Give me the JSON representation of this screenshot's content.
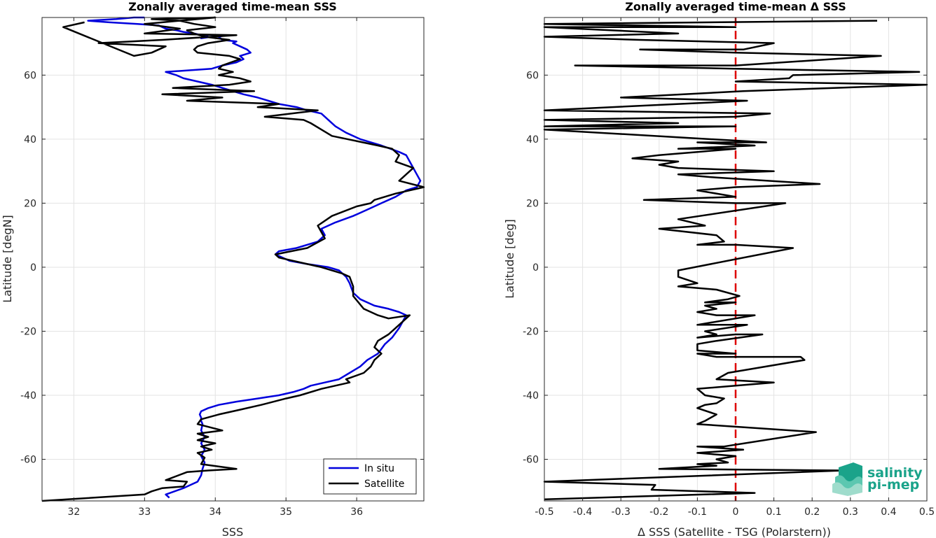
{
  "chart_data": [
    {
      "type": "line",
      "title": "Zonally averaged time-mean SSS",
      "xlabel": "SSS",
      "ylabel": "Latitude [degN]",
      "xlim": [
        31.55,
        36.95
      ],
      "ylim": [
        -73,
        78
      ],
      "xticks": [
        32,
        33,
        34,
        35,
        36
      ],
      "yticks": [
        -60,
        -40,
        -20,
        0,
        20,
        40,
        60
      ],
      "grid": true,
      "legend_position": "bottom-right",
      "series": [
        {
          "name": "In situ",
          "color": "#0000dd",
          "x": [
            33.35,
            33.3,
            33.55,
            33.75,
            33.8,
            33.82,
            33.85,
            33.8,
            33.85,
            33.8,
            33.85,
            33.8,
            33.82,
            33.8,
            33.8,
            33.78,
            33.8,
            33.9,
            34.05,
            34.3,
            34.6,
            34.9,
            35.1,
            35.25,
            35.35,
            35.55,
            35.75,
            35.9,
            36.05,
            36.15,
            36.3,
            36.4,
            36.5,
            36.6,
            36.7,
            36.6,
            36.45,
            36.25,
            36.05,
            35.95,
            35.9,
            35.85,
            35.75,
            35.6,
            35.3,
            35.05,
            34.85,
            34.9,
            35.15,
            35.45,
            35.55,
            35.5,
            35.7,
            35.95,
            36.15,
            36.35,
            36.55,
            36.7,
            36.85,
            36.9,
            36.85,
            36.8,
            36.75,
            36.7,
            36.6,
            36.35,
            36.05,
            35.85,
            35.7,
            35.6,
            35.5,
            35.3,
            35.15,
            34.9,
            34.75,
            34.6,
            34.4,
            34.25,
            34.1,
            33.95,
            33.75,
            33.55,
            33.45,
            33.3,
            33.95,
            34.1,
            34.3,
            34.4,
            34.35,
            34.5,
            34.45,
            34.35,
            34.25,
            34.3,
            34.1,
            34.05,
            34.15,
            33.95,
            33.8,
            33.9,
            33.7,
            33.55,
            33.45,
            33.3,
            33.25,
            33.2,
            32.9,
            32.5,
            32.2,
            32.6,
            32.85,
            33.0
          ],
          "y": [
            -72,
            -71,
            -69,
            -67,
            -65,
            -63,
            -61,
            -59,
            -57,
            -55,
            -53,
            -51,
            -49,
            -48,
            -47,
            -46,
            -45,
            -44,
            -43,
            -42,
            -41,
            -40,
            -39,
            -38,
            -37,
            -36,
            -35,
            -33,
            -31,
            -29,
            -27,
            -24,
            -22,
            -19,
            -15,
            -14,
            -13,
            -12,
            -10,
            -8,
            -5,
            -3,
            -1,
            0,
            1,
            2,
            4,
            5,
            6,
            8,
            10,
            12,
            14,
            16,
            18,
            20,
            22,
            24,
            25,
            27,
            29,
            31,
            33,
            35,
            36,
            38,
            40,
            42,
            44,
            46,
            48,
            49,
            50,
            51,
            52,
            53,
            54,
            55,
            56,
            57,
            58,
            59,
            60,
            61,
            62,
            63,
            64,
            65,
            66,
            67,
            68,
            69,
            70,
            70.5,
            71,
            72,
            72.5,
            72,
            71.5,
            72,
            73,
            73.5,
            74,
            74.5,
            75,
            75.5,
            76,
            76.5,
            77,
            77.5,
            78,
            78
          ]
        },
        {
          "name": "Satellite",
          "color": "#000000",
          "x": [
            31.55,
            33.0,
            33.1,
            33.25,
            33.55,
            33.6,
            33.3,
            33.6,
            33.9,
            34.3,
            33.8,
            33.85,
            33.75,
            33.95,
            33.8,
            34.0,
            33.75,
            33.9,
            33.75,
            34.1,
            33.75,
            33.8,
            34.05,
            34.35,
            34.65,
            35.0,
            35.2,
            35.5,
            35.9,
            35.85,
            36.1,
            36.2,
            36.25,
            36.35,
            36.25,
            36.3,
            36.45,
            36.55,
            36.75,
            36.45,
            36.3,
            36.1,
            35.95,
            35.95,
            35.9,
            35.8,
            35.5,
            35.3,
            34.9,
            34.85,
            35.3,
            35.55,
            35.45,
            35.65,
            36.0,
            36.2,
            36.25,
            36.55,
            36.95,
            36.6,
            36.8,
            36.55,
            36.6,
            36.5,
            36.3,
            35.65,
            35.5,
            35.35,
            35.25,
            34.7,
            35.45,
            34.6,
            34.9,
            33.6,
            34.1,
            33.25,
            34.55,
            33.4,
            34.2,
            34.5,
            34.35,
            34.05,
            34.25,
            34.05,
            34.1,
            34.35,
            34.2,
            33.75,
            33.7,
            33.75,
            33.9,
            34.2,
            33.85,
            33.7,
            33.6,
            34.0,
            33.7,
            33.5,
            33.1,
            34.0,
            33.0,
            33.5,
            33.0,
            34.3,
            33.25,
            32.35,
            33.3,
            33.1,
            32.85,
            31.85,
            32.15
          ],
          "y": [
            -73,
            -71,
            -70,
            -69,
            -68.5,
            -67,
            -66.5,
            -64,
            -63.5,
            -63,
            -61.5,
            -59.5,
            -58,
            -57,
            -56,
            -55,
            -54,
            -53,
            -52,
            -51,
            -49,
            -47.5,
            -46,
            -44.5,
            -43,
            -41,
            -40,
            -38,
            -36,
            -35,
            -33,
            -31,
            -29,
            -27,
            -25,
            -23,
            -21,
            -19,
            -15,
            -16,
            -15,
            -13,
            -9,
            -6,
            -3,
            -2,
            0,
            1,
            3,
            4,
            6,
            9,
            13,
            16,
            19,
            20,
            21,
            23,
            25,
            27,
            31,
            33,
            35,
            37,
            38,
            41,
            43,
            45,
            46,
            47,
            49,
            50,
            51,
            52,
            53,
            54,
            55,
            56,
            57,
            58,
            59,
            60,
            61,
            62,
            63,
            65,
            66,
            67,
            68,
            69,
            70,
            71,
            72,
            73,
            74,
            75,
            76,
            77,
            77.5,
            78,
            76,
            74.5,
            73,
            72.5,
            71,
            70,
            69,
            67,
            66,
            75,
            76.5
          ]
        }
      ]
    },
    {
      "type": "line",
      "title": "Zonally averaged time-mean Δ SSS",
      "xlabel": "Δ SSS (Satellite - TSG (Polarstern))",
      "ylabel": "Latitude [deg]",
      "xlim": [
        -0.5,
        0.5
      ],
      "ylim": [
        -73,
        78
      ],
      "xticks": [
        -0.5,
        -0.4,
        -0.3,
        -0.2,
        -0.1,
        0,
        0.1,
        0.2,
        0.3,
        0.4,
        0.5
      ],
      "yticks": [
        -60,
        -40,
        -20,
        0,
        20,
        40,
        60
      ],
      "grid": true,
      "zero_line_color": "#dd0000",
      "series": [
        {
          "name": "",
          "color": "#000000",
          "x": [
            -0.5,
            0.05,
            -0.22,
            -0.21,
            -0.5,
            0.28,
            -0.2,
            -0.05,
            -0.1,
            -0.02,
            -0.05,
            0.0,
            -0.1,
            0.02,
            -0.1,
            -0.03,
            0.21,
            -0.1,
            -0.08,
            -0.05,
            -0.1,
            -0.08,
            -0.05,
            -0.03,
            -0.08,
            -0.1,
            0.0,
            0.1,
            -0.05,
            -0.02,
            0.18,
            0.17,
            -0.05,
            -0.1,
            0.0,
            -0.1,
            -0.1,
            -0.05,
            0.07,
            0.0,
            -0.1,
            -0.05,
            -0.08,
            0.03,
            -0.1,
            0.05,
            -0.05,
            -0.1,
            -0.05,
            -0.08,
            0.0,
            -0.08,
            -0.02,
            0.01,
            -0.05,
            -0.15,
            -0.1,
            -0.15,
            -0.15,
            0.15,
            0.0,
            -0.1,
            -0.03,
            -0.05,
            -0.2,
            -0.08,
            -0.15,
            0.13,
            0.0,
            -0.24,
            0.0,
            -0.1,
            0.0,
            0.22,
            -0.05,
            -0.15,
            0.1,
            -0.15,
            -0.2,
            -0.15,
            -0.27,
            -0.2,
            -0.1,
            0.0,
            -0.1,
            -0.15,
            0.05,
            -0.1,
            0.08,
            -0.5,
            0.0,
            -0.5,
            -0.15,
            -0.5,
            0.0,
            0.09,
            -0.5,
            0.03,
            -0.3,
            0.02,
            0.5,
            0.0,
            0.14,
            0.15,
            0.48,
            0.0,
            -0.42,
            0.0,
            0.38,
            0.0,
            -0.25,
            0.02,
            0.1,
            -0.25,
            -0.5,
            -0.15,
            -0.5,
            0.0,
            -0.5,
            0.37
          ],
          "y": [
            -72.5,
            -70.5,
            -69.5,
            -68,
            -67,
            -63.5,
            -63,
            -62,
            -61.5,
            -61,
            -60,
            -59,
            -58,
            -57,
            -56,
            -56,
            -51.5,
            -49,
            -48,
            -46,
            -44,
            -43,
            -42.5,
            -41,
            -40,
            -38,
            -37,
            -36,
            -35,
            -33,
            -29,
            -28,
            -28,
            -27,
            -27,
            -26,
            -24,
            -23,
            -21,
            -21,
            -22,
            -21,
            -20,
            -18,
            -18,
            -15,
            -15,
            -14,
            -13,
            -12,
            -11,
            -11,
            -10,
            -9,
            -7,
            -6,
            -5,
            -3,
            -1,
            6,
            7,
            7,
            8,
            10,
            12,
            13,
            15,
            20,
            20,
            21,
            22,
            24,
            25,
            26,
            28,
            29,
            30,
            31,
            32,
            33,
            34,
            35,
            36,
            37,
            37,
            37,
            38,
            39,
            39,
            43,
            44,
            44,
            45,
            46,
            47,
            48,
            49,
            52,
            53,
            55,
            57,
            58,
            59,
            60,
            61,
            62,
            63,
            63,
            66,
            67,
            68,
            68,
            70,
            71,
            72,
            73,
            75,
            75,
            76,
            77
          ],
          "note": ""
        }
      ]
    }
  ],
  "logo": {
    "line1": "salinity",
    "line2": "pi-mep"
  }
}
